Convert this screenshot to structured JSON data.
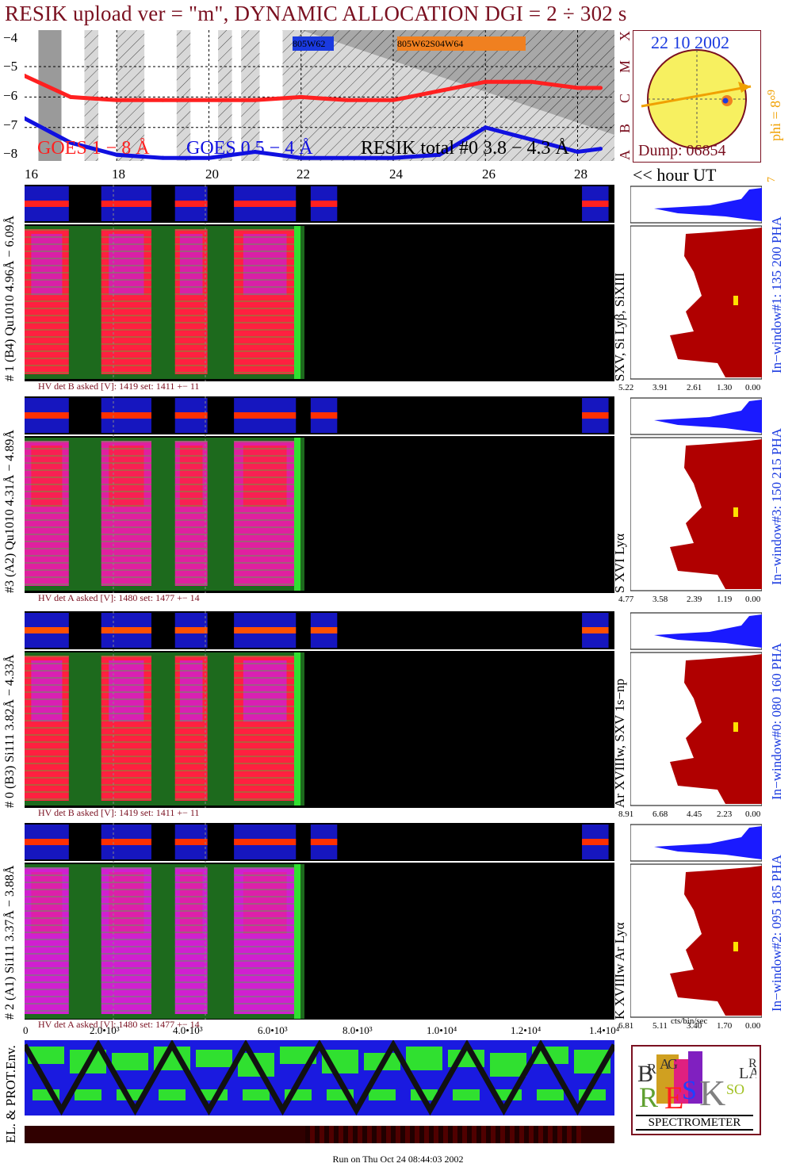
{
  "title": "RESIK upload ver = \"m\", DYNAMIC ALLOCATION  DGI =   2 ÷ 302 s",
  "footer": "Run on Thu Oct 24 08:44:03 2002",
  "colors": {
    "title": "#7a1020",
    "goes_long": "#ff2020",
    "goes_short": "#1010e0",
    "resik_total": "#000000",
    "hist_red": "#b00000",
    "hist_blue": "#1a1aff",
    "orange": "#f0a000",
    "dark_red": "#7a1020"
  },
  "goes_panel": {
    "y_ticks": [
      "−4",
      "−5",
      "−6",
      "−7",
      "−8"
    ],
    "right_letters": [
      "X",
      "M",
      "C",
      "B",
      "A"
    ],
    "legend_goes_long": "GOES 1 − 8 Å",
    "legend_goes_short": "GOES 0.5 − 4 Å",
    "legend_resik": "RESIK total #0  3.8 − 4.3 Å",
    "upload_box_1": "805W62",
    "upload_box_2": "805W62S04W64"
  },
  "time_axis": {
    "ticks": [
      "16",
      "18",
      "20",
      "22",
      "24",
      "26",
      "28"
    ],
    "unit_label": "<< hour UT"
  },
  "sun_panel": {
    "date": "22 10 2002",
    "phi_label": "phi =  8°",
    "phi_ticks": [
      "9",
      "8°",
      "7"
    ],
    "dump": "Dump: 06854"
  },
  "channels": [
    {
      "left_label": "# 1 (B4) Qu1010 4.96Å − 6.09Å",
      "line_label": "SXV,  Si Lyβ, SiXIII",
      "window_label": "In−window#1:  135 200 PHA",
      "hv_label": "HV det B asked [V]:  1419 set:  1411  +−   11",
      "scale_ticks": [
        "5.22",
        "3.91",
        "2.61",
        "1.30",
        "0.00"
      ]
    },
    {
      "left_label": "#3 (A2) Qu1010  4.31Å − 4.89Å",
      "line_label": "S XVI Lyα",
      "window_label": "In−window#3:  150 215 PHA",
      "hv_label": "HV det A asked [V]:  1480 set:  1477  +−    14",
      "scale_ticks": [
        "4.77",
        "3.58",
        "2.39",
        "1.19",
        "0.00"
      ]
    },
    {
      "left_label": "# 0 (B3) Si111  3.82Å − 4.33Å",
      "line_label": "Ar XVIIIw,  SXV 1s−np",
      "window_label": "In−window#0:  080 160 PHA",
      "hv_label": "HV det B asked [V]:  1419 set:  1411  +−   11",
      "scale_ticks": [
        "8.91",
        "6.68",
        "4.45",
        "2.23",
        "0.00"
      ]
    },
    {
      "left_label": "# 2 (A1) Si111  3.37Å − 3.88Å",
      "line_label": "K XVIIIw  Ar Lyα",
      "window_label": "In−window#2:  095 185 PHA",
      "hv_label": "HV det A asked [V]:  1480 set:  1477 +−    14",
      "scale_ticks": [
        "6.81",
        "5.11",
        "3.40",
        "1.70",
        "0.00"
      ]
    }
  ],
  "bottom_axis": {
    "ticks": [
      "0",
      "2.0•10³",
      "4.0•10³",
      "6.0•10³",
      "8.0•10³",
      "1.0•10⁴",
      "1.2•10⁴",
      "1.4•10⁴"
    ],
    "unit_label": "cts/bin/sec"
  },
  "env_panel": {
    "label": "EL. & PROT.Env."
  },
  "logo": {
    "letters": [
      "B",
      "R",
      "A",
      "G",
      "G",
      "R",
      "E",
      "S",
      "I",
      "K",
      "S",
      "O",
      "L",
      "A",
      "R"
    ],
    "caption": "SPECTROMETER"
  },
  "chart_data": [
    {
      "type": "line",
      "title": "",
      "xlabel": "",
      "ylabel": "",
      "x": [
        16,
        17,
        18,
        19,
        20,
        21,
        22,
        23,
        24,
        25,
        26,
        27,
        28,
        28.5
      ],
      "xlim": [
        16,
        28.8
      ],
      "ylim": [
        -8.1,
        -3.8
      ],
      "series": [
        {
          "name": "GOES 1 − 8 Å",
          "values": [
            -5.3,
            -6.0,
            -6.1,
            -6.1,
            -6.1,
            -6.1,
            -6.0,
            -6.1,
            -6.1,
            -5.8,
            -5.5,
            -5.5,
            -5.7,
            -5.7
          ]
        },
        {
          "name": "GOES 0.5 − 4 Å",
          "values": [
            -6.7,
            -7.5,
            -7.9,
            -8.0,
            -8.0,
            -7.8,
            -8.0,
            -8.0,
            -8.0,
            -7.9,
            -7.0,
            -7.4,
            -7.8,
            -7.7
          ]
        }
      ]
    },
    {
      "type": "heatmap",
      "title": "",
      "xlabel": "",
      "ylabel": "",
      "x_range": [
        16,
        28.8
      ],
      "note_blocks": [
        "data",
        "data",
        "data",
        "data",
        "no data",
        "data"
      ]
    }
  ]
}
